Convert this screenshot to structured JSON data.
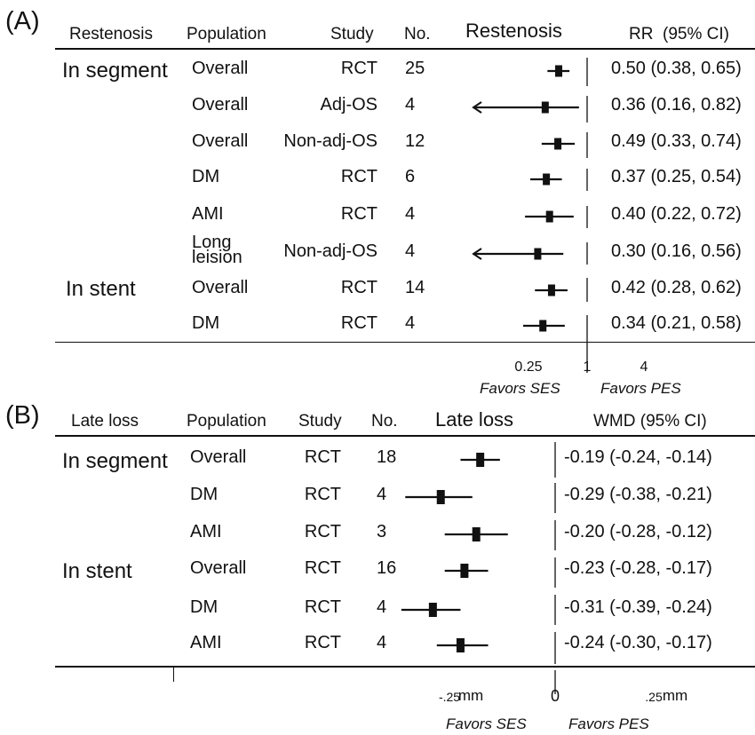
{
  "chart_data": [
    {
      "type": "forest",
      "panel_label": "(A)",
      "headers": {
        "outcome": "Restenosis",
        "population": "Population",
        "study": "Study",
        "number": "No.",
        "plot_title": "Restenosis",
        "effect": "RR",
        "ci": "(95% CI)"
      },
      "groups": [
        "In segment",
        "In stent"
      ],
      "rows": [
        {
          "group": "In segment",
          "population": "Overall",
          "study": "RCT",
          "n": "25",
          "estimate": 0.5,
          "lower": 0.38,
          "upper": 0.65,
          "label": "0.50 (0.38, 0.65)"
        },
        {
          "group": "In segment",
          "population": "Overall",
          "study": "Adj-OS",
          "n": "4",
          "estimate": 0.36,
          "lower": 0.16,
          "upper": 0.82,
          "label": "0.36 (0.16, 0.82)"
        },
        {
          "group": "In segment",
          "population": "Overall",
          "study": "Non-adj-OS",
          "n": "12",
          "estimate": 0.49,
          "lower": 0.33,
          "upper": 0.74,
          "label": "0.49 (0.33, 0.74)"
        },
        {
          "group": "In segment",
          "population": "DM",
          "study": "RCT",
          "n": "6",
          "estimate": 0.37,
          "lower": 0.25,
          "upper": 0.54,
          "label": "0.37 (0.25, 0.54)"
        },
        {
          "group": "In segment",
          "population": "AMI",
          "study": "RCT",
          "n": "4",
          "estimate": 0.4,
          "lower": 0.22,
          "upper": 0.72,
          "label": "0.40 (0.22, 0.72)"
        },
        {
          "group": "In segment",
          "population": "Long leision",
          "study": "Non-adj-OS",
          "n": "4",
          "estimate": 0.3,
          "lower": 0.16,
          "upper": 0.56,
          "label": "0.30 (0.16, 0.56)"
        },
        {
          "group": "In stent",
          "population": "Overall",
          "study": "RCT",
          "n": "14",
          "estimate": 0.42,
          "lower": 0.28,
          "upper": 0.62,
          "label": "0.42 (0.28, 0.62)"
        },
        {
          "group": "In stent",
          "population": "DM",
          "study": "RCT",
          "n": "4",
          "estimate": 0.34,
          "lower": 0.21,
          "upper": 0.58,
          "label": "0.34 (0.21, 0.58)"
        }
      ],
      "scale": "log",
      "xlim": [
        0.12,
        7
      ],
      "reference_line": 1,
      "ticks": [
        {
          "value": 0.25,
          "label": "0.25"
        },
        {
          "value": 1,
          "label": "1"
        },
        {
          "value": 4,
          "label": "4"
        }
      ],
      "favors_left": "Favors SES",
      "favors_right": "Favors PES"
    },
    {
      "type": "forest",
      "panel_label": "(B)",
      "headers": {
        "outcome": "Late loss",
        "population": "Population",
        "study": "Study",
        "number": "No.",
        "plot_title": "Late loss",
        "effect": "WMD",
        "ci": "(95% CI)"
      },
      "groups": [
        "In segment",
        "In stent"
      ],
      "rows": [
        {
          "group": "In segment",
          "population": "Overall",
          "study": "RCT",
          "n": "18",
          "estimate": -0.19,
          "lower": -0.24,
          "upper": -0.14,
          "label": "-0.19 (-0.24, -0.14)"
        },
        {
          "group": "In segment",
          "population": "DM",
          "study": "RCT",
          "n": "4",
          "estimate": -0.29,
          "lower": -0.38,
          "upper": -0.21,
          "label": "-0.29 (-0.38, -0.21)"
        },
        {
          "group": "In segment",
          "population": "AMI",
          "study": "RCT",
          "n": "3",
          "estimate": -0.2,
          "lower": -0.28,
          "upper": -0.12,
          "label": "-0.20 (-0.28, -0.12)"
        },
        {
          "group": "In stent",
          "population": "Overall",
          "study": "RCT",
          "n": "16",
          "estimate": -0.23,
          "lower": -0.28,
          "upper": -0.17,
          "label": "-0.23 (-0.28, -0.17)"
        },
        {
          "group": "In stent",
          "population": "DM",
          "study": "RCT",
          "n": "4",
          "estimate": -0.31,
          "lower": -0.39,
          "upper": -0.24,
          "label": "-0.31 (-0.39, -0.24)"
        },
        {
          "group": "In stent",
          "population": "AMI",
          "study": "RCT",
          "n": "4",
          "estimate": -0.24,
          "lower": -0.3,
          "upper": -0.17,
          "label": "-0.24 (-0.30, -0.17)"
        }
      ],
      "scale": "linear",
      "xlim": [
        -0.5,
        0.5
      ],
      "reference_line": 0,
      "ticks": [
        {
          "value": -0.25,
          "label": "-.25"
        },
        {
          "value": 0,
          "label": "0"
        },
        {
          "value": 0.25,
          "label": ".25"
        }
      ],
      "tick_unit": "mm",
      "favors_left": "Favors SES",
      "favors_right": "Favors PES"
    }
  ]
}
